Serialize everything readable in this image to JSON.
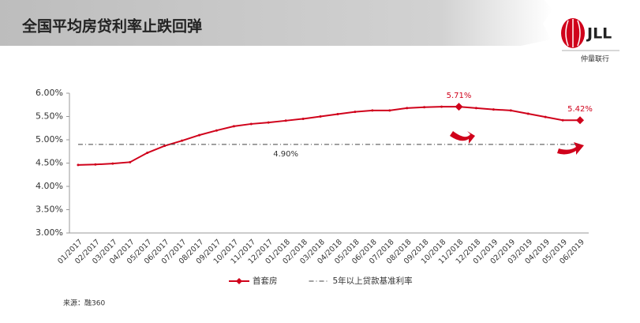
{
  "header": {
    "title": "全国平均房贷利率止跌回弹",
    "logo": "JLL",
    "company": "仲量联行"
  },
  "chart_data": {
    "type": "line",
    "categories": [
      "01/2017",
      "02/2017",
      "03/2017",
      "04/2017",
      "05/2017",
      "06/2017",
      "07/2017",
      "08/2017",
      "09/2017",
      "10/2017",
      "11/2017",
      "12/2017",
      "01/2018",
      "02/2018",
      "03/2018",
      "04/2018",
      "05/2018",
      "06/2018",
      "07/2018",
      "08/2018",
      "09/2018",
      "10/2018",
      "11/2018",
      "12/2018",
      "01/2019",
      "02/2019",
      "03/2019",
      "04/2019",
      "05/2019",
      "06/2019"
    ],
    "series": [
      {
        "name": "首套房",
        "color": "#d0021b",
        "values": [
          4.46,
          4.47,
          4.49,
          4.52,
          4.72,
          4.87,
          4.98,
          5.1,
          5.2,
          5.29,
          5.34,
          5.37,
          5.41,
          5.45,
          5.5,
          5.55,
          5.6,
          5.63,
          5.63,
          5.68,
          5.7,
          5.71,
          5.71,
          5.68,
          5.65,
          5.63,
          5.56,
          5.49,
          5.42,
          5.42
        ],
        "value_labels": [
          null,
          null,
          null,
          null,
          null,
          null,
          null,
          null,
          null,
          null,
          null,
          null,
          null,
          null,
          null,
          null,
          null,
          null,
          null,
          null,
          null,
          null,
          "5.71%",
          null,
          null,
          null,
          null,
          null,
          null,
          "5.42%"
        ]
      },
      {
        "name": "5年以上贷款基准利率",
        "color": "#444444",
        "values": [
          4.9,
          4.9,
          4.9,
          4.9,
          4.9,
          4.9,
          4.9,
          4.9,
          4.9,
          4.9,
          4.9,
          4.9,
          4.9,
          4.9,
          4.9,
          4.9,
          4.9,
          4.9,
          4.9,
          4.9,
          4.9,
          4.9,
          4.9,
          4.9,
          4.9,
          4.9,
          4.9,
          4.9,
          4.9,
          4.9
        ],
        "value_labels": [
          null,
          null,
          null,
          null,
          null,
          null,
          null,
          null,
          null,
          null,
          null,
          null,
          "4.90%",
          null,
          null,
          null,
          null,
          null,
          null,
          null,
          null,
          null,
          null,
          null,
          null,
          null,
          null,
          null,
          null,
          null
        ]
      }
    ],
    "ylim": [
      3.0,
      6.0
    ],
    "yticks": [
      {
        "value": 3.0,
        "label": "3.00%"
      },
      {
        "value": 3.5,
        "label": "3.50%"
      },
      {
        "value": 4.0,
        "label": "4.00%"
      },
      {
        "value": 4.5,
        "label": "4.50%"
      },
      {
        "value": 5.0,
        "label": "5.00%"
      },
      {
        "value": 5.5,
        "label": "5.50%"
      },
      {
        "value": 6.0,
        "label": "6.00%"
      }
    ],
    "grid": false,
    "legend": "bottom"
  },
  "source": "来源：融360"
}
